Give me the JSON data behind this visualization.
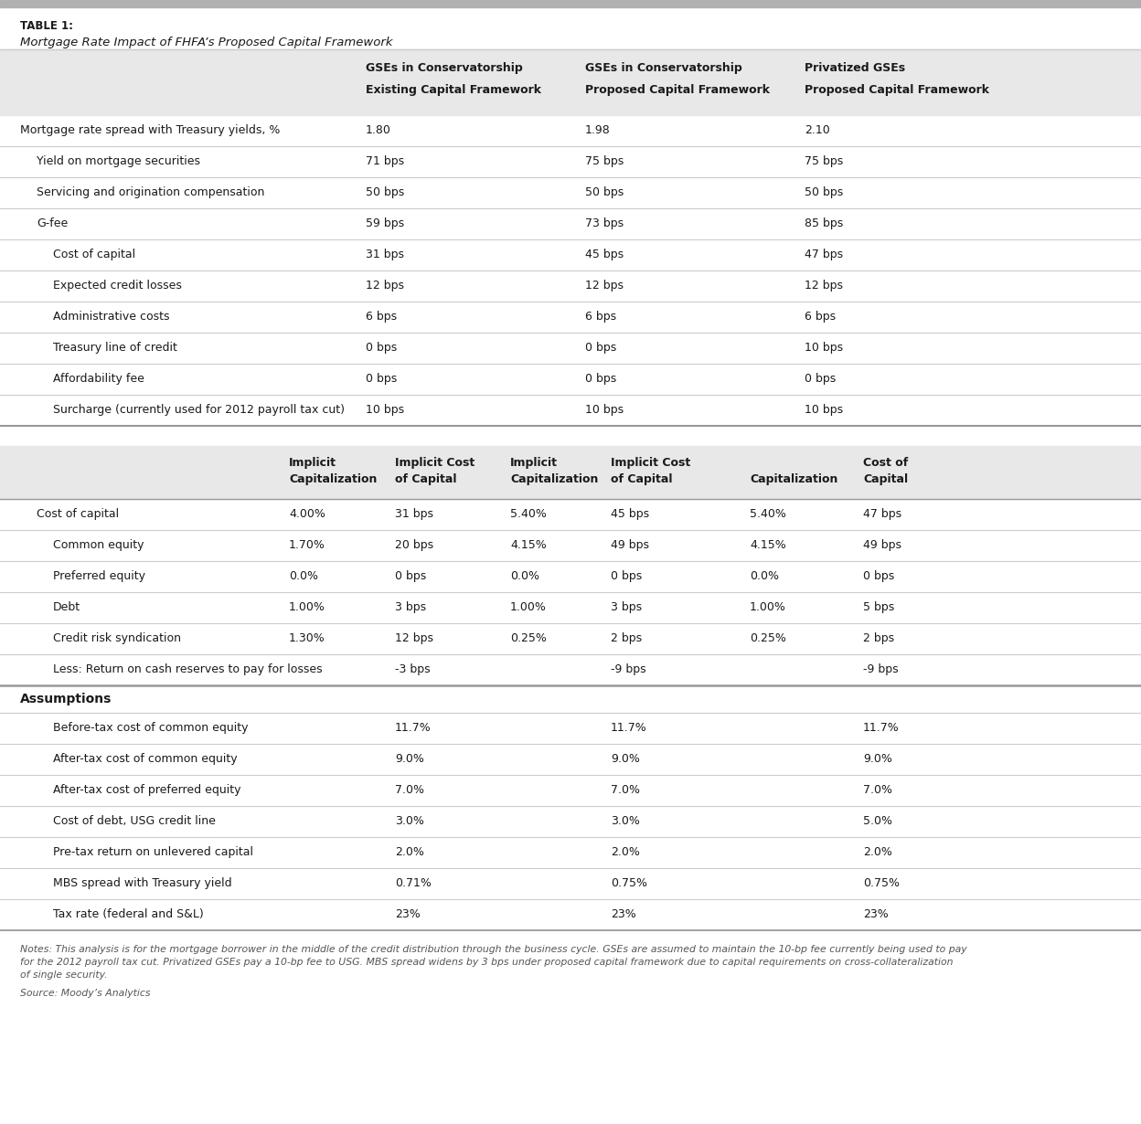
{
  "table_label": "TABLE 1:",
  "title": "Mortgage Rate Impact of FHFA’s Proposed Capital Framework",
  "section1_col_headers_line1": [
    "GSEs in Conservatorship",
    "GSEs in Conservatorship",
    "Privatized GSEs"
  ],
  "section1_col_headers_line2": [
    "Existing Capital Framework",
    "Proposed Capital Framework",
    "Proposed Capital Framework"
  ],
  "section1_rows": [
    {
      "label": "Mortgage rate spread with Treasury yields, %",
      "indent": 0,
      "bold": false,
      "values": [
        "1.80",
        "1.98",
        "2.10"
      ]
    },
    {
      "label": "Yield on mortgage securities",
      "indent": 1,
      "bold": false,
      "values": [
        "71 bps",
        "75 bps",
        "75 bps"
      ]
    },
    {
      "label": "Servicing and origination compensation",
      "indent": 1,
      "bold": false,
      "values": [
        "50 bps",
        "50 bps",
        "50 bps"
      ]
    },
    {
      "label": "G-fee",
      "indent": 1,
      "bold": false,
      "values": [
        "59 bps",
        "73 bps",
        "85 bps"
      ]
    },
    {
      "label": "Cost of capital",
      "indent": 2,
      "bold": false,
      "values": [
        "31 bps",
        "45 bps",
        "47 bps"
      ]
    },
    {
      "label": "Expected credit losses",
      "indent": 2,
      "bold": false,
      "values": [
        "12 bps",
        "12 bps",
        "12 bps"
      ]
    },
    {
      "label": "Administrative costs",
      "indent": 2,
      "bold": false,
      "values": [
        "6 bps",
        "6 bps",
        "6 bps"
      ]
    },
    {
      "label": "Treasury line of credit",
      "indent": 2,
      "bold": false,
      "values": [
        "0 bps",
        "0 bps",
        "10 bps"
      ]
    },
    {
      "label": "Affordability fee",
      "indent": 2,
      "bold": false,
      "values": [
        "0 bps",
        "0 bps",
        "0 bps"
      ]
    },
    {
      "label": "Surcharge (currently used for 2012 payroll tax cut)",
      "indent": 2,
      "bold": false,
      "values": [
        "10 bps",
        "10 bps",
        "10 bps"
      ]
    }
  ],
  "section2_col_headers_line1": [
    "Implicit",
    "Implicit Cost",
    "Implicit",
    "Implicit Cost",
    "",
    "Cost of"
  ],
  "section2_col_headers_line2": [
    "Capitalization",
    "of Capital",
    "Capitalization",
    "of Capital",
    "Capitalization",
    "Capital"
  ],
  "section2_rows": [
    {
      "label": "Cost of capital",
      "indent": 1,
      "bold": false,
      "values": [
        "4.00%",
        "31 bps",
        "5.40%",
        "45 bps",
        "5.40%",
        "47 bps"
      ]
    },
    {
      "label": "Common equity",
      "indent": 2,
      "bold": false,
      "values": [
        "1.70%",
        "20 bps",
        "4.15%",
        "49 bps",
        "4.15%",
        "49 bps"
      ]
    },
    {
      "label": "Preferred equity",
      "indent": 2,
      "bold": false,
      "values": [
        "0.0%",
        "0 bps",
        "0.0%",
        "0 bps",
        "0.0%",
        "0 bps"
      ]
    },
    {
      "label": "Debt",
      "indent": 2,
      "bold": false,
      "values": [
        "1.00%",
        "3 bps",
        "1.00%",
        "3 bps",
        "1.00%",
        "5 bps"
      ]
    },
    {
      "label": "Credit risk syndication",
      "indent": 2,
      "bold": false,
      "values": [
        "1.30%",
        "12 bps",
        "0.25%",
        "2 bps",
        "0.25%",
        "2 bps"
      ]
    },
    {
      "label": "Less: Return on cash reserves to pay for losses",
      "indent": 2,
      "bold": false,
      "values": [
        "",
        "-3 bps",
        "",
        "-9 bps",
        "",
        "-9 bps"
      ]
    }
  ],
  "assumptions_rows": [
    {
      "label": "Before-tax cost of common equity",
      "indent": 2,
      "values": [
        "",
        "11.7%",
        "",
        "11.7%",
        "",
        "11.7%"
      ]
    },
    {
      "label": "After-tax cost of common equity",
      "indent": 2,
      "values": [
        "",
        "9.0%",
        "",
        "9.0%",
        "",
        "9.0%"
      ]
    },
    {
      "label": "After-tax cost of preferred equity",
      "indent": 2,
      "values": [
        "",
        "7.0%",
        "",
        "7.0%",
        "",
        "7.0%"
      ]
    },
    {
      "label": "Cost of debt, USG credit line",
      "indent": 2,
      "values": [
        "",
        "3.0%",
        "",
        "3.0%",
        "",
        "5.0%"
      ]
    },
    {
      "label": "Pre-tax return on unlevered capital",
      "indent": 2,
      "values": [
        "",
        "2.0%",
        "",
        "2.0%",
        "",
        "2.0%"
      ]
    },
    {
      "label": "MBS spread with Treasury yield",
      "indent": 2,
      "values": [
        "",
        "0.71%",
        "",
        "0.75%",
        "",
        "0.75%"
      ]
    },
    {
      "label": "Tax rate (federal and S&L)",
      "indent": 2,
      "values": [
        "",
        "23%",
        "",
        "23%",
        "",
        "23%"
      ]
    }
  ],
  "notes_line1": "Notes: This analysis is for the mortgage borrower in the middle of the credit distribution through the business cycle. GSEs are assumed to maintain the 10-bp fee currently being used to pay",
  "notes_line2": "for the 2012 payroll tax cut. Privatized GSEs pay a 10-bp fee to USG. MBS spread widens by 3 bps under proposed capital framework due to capital requirements on cross-collateralization",
  "notes_line3": "of single security.",
  "source": "Source: Moody’s Analytics",
  "top_bar_color": "#b0b0b0",
  "header_bg_color": "#e8e8e8",
  "line_color_light": "#cccccc",
  "line_color_dark": "#999999",
  "text_color": "#1a1a1a",
  "note_color": "#555555"
}
